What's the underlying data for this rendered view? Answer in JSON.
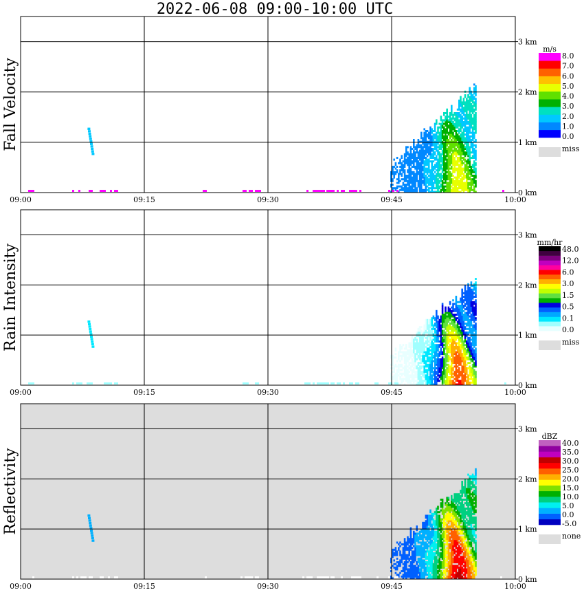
{
  "title": "2022-06-08   09:00-10:00 UTC",
  "chart_data": [
    {
      "type": "heatmap",
      "ylabel": "Fall Velocity",
      "x_ticks": [
        "09:00",
        "09:15",
        "09:30",
        "09:45",
        "10:00"
      ],
      "y_ticks": [
        "0 km",
        "1 km",
        "2 km",
        "3 km"
      ],
      "ylim": [
        0,
        3.5
      ],
      "background": "#ffffff",
      "colorbar": {
        "unit": "m/s",
        "colors": [
          "#0000ff",
          "#0088ff",
          "#00c8ff",
          "#00e0c0",
          "#00b000",
          "#60e000",
          "#e8ff00",
          "#ffc000",
          "#ff6000",
          "#ff0000",
          "#ff00ff"
        ],
        "labels": [
          "8.0",
          "7.0",
          "6.0",
          "5.0",
          "4.0",
          "3.0",
          "2.0",
          "1.0",
          "0.0"
        ],
        "miss_label": "miss",
        "miss_color": "#dddddd"
      }
    },
    {
      "type": "heatmap",
      "ylabel": "Rain Intensity",
      "x_ticks": [
        "09:00",
        "09:15",
        "09:30",
        "09:45",
        "10:00"
      ],
      "y_ticks": [
        "0 km",
        "1 km",
        "2 km",
        "3 km"
      ],
      "ylim": [
        0,
        3.5
      ],
      "background": "#ffffff",
      "colorbar": {
        "unit": "mm/hr",
        "colors": [
          "#e8ffff",
          "#a0ffff",
          "#00e8ff",
          "#00a8ff",
          "#0060ff",
          "#0000e0",
          "#00b000",
          "#60e040",
          "#c0ff00",
          "#ffff00",
          "#ffb000",
          "#ff6000",
          "#ff0000",
          "#ff00a0",
          "#c000c0",
          "#800080",
          "#400040",
          "#000000"
        ],
        "labels": [
          "48.0",
          "12.0",
          "6.0",
          "3.0",
          "1.5",
          "0.5",
          "0.1",
          "0.0"
        ],
        "miss_label": "miss",
        "miss_color": "#dddddd"
      }
    },
    {
      "type": "heatmap",
      "ylabel": "Reflectivity",
      "x_ticks": [
        "09:00",
        "09:15",
        "09:30",
        "09:45",
        "10:00"
      ],
      "y_ticks": [
        "0 km",
        "1 km",
        "2 km",
        "3 km"
      ],
      "ylim": [
        0,
        3.5
      ],
      "background": "#dddddd",
      "colorbar": {
        "unit": "dBZ",
        "colors": [
          "#0000c0",
          "#0060ff",
          "#00b0ff",
          "#00f0f0",
          "#00d080",
          "#00b000",
          "#80e000",
          "#ffff00",
          "#ffb000",
          "#ff6000",
          "#ff0000",
          "#c00000",
          "#c000c0",
          "#9000a0",
          "#c060c0"
        ],
        "labels": [
          "40.0",
          "35.0",
          "30.0",
          "25.0",
          "20.0",
          "15.0",
          "10.0",
          "5.0",
          "0.0",
          "-5.0"
        ],
        "miss_label": "none",
        "miss_color": "#dddddd"
      }
    }
  ]
}
